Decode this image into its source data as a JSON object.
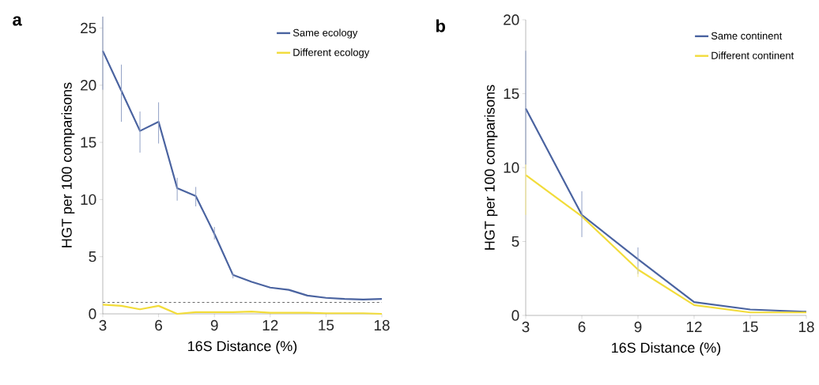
{
  "chart_data": [
    {
      "type": "line",
      "title": "a",
      "xlabel": "16S Distance (%)",
      "ylabel": "HGT per 100 comparisons",
      "x": [
        3,
        4,
        5,
        6,
        7,
        8,
        9,
        10,
        11,
        12,
        13,
        14,
        15,
        16,
        17,
        18
      ],
      "xlim": [
        3,
        18
      ],
      "ylim": [
        0,
        26
      ],
      "xticks": [
        3,
        6,
        9,
        12,
        15,
        18
      ],
      "yticks": [
        0,
        5,
        10,
        15,
        20,
        25
      ],
      "legend": "top right",
      "series": [
        {
          "name": "Same ecology",
          "color": "#4a63a0",
          "values": [
            23,
            19.5,
            16,
            16.8,
            11,
            10.3,
            7,
            3.4,
            2.8,
            2.3,
            2.1,
            1.6,
            1.4,
            1.3,
            1.25,
            1.3
          ],
          "errors": [
            [
              19.6,
              26
            ],
            [
              16.8,
              21.8
            ],
            [
              14.1,
              17.7
            ],
            [
              14.9,
              18.5
            ],
            [
              9.9,
              11.9
            ],
            [
              9.4,
              11.1
            ],
            [
              6.5,
              7.6
            ],
            [
              3.1,
              3.6
            ],
            null,
            null,
            null,
            null,
            null,
            null,
            null,
            null
          ]
        },
        {
          "name": "Different ecology",
          "color": "#f2dc3a",
          "values": [
            0.8,
            0.7,
            0.4,
            0.7,
            0,
            0.15,
            0.15,
            0.15,
            0.2,
            0.1,
            0.1,
            0.1,
            0.05,
            0.05,
            0.05,
            0
          ]
        }
      ],
      "ref_lines": [
        {
          "axis": "y",
          "value": 1,
          "color": "#666666",
          "line_style": "dashed"
        }
      ]
    },
    {
      "type": "line",
      "title": "b",
      "xlabel": "16S Distance (%)",
      "ylabel": "HGT per 100 comparisons",
      "x": [
        3,
        6,
        9,
        12,
        15,
        18
      ],
      "xlim": [
        3,
        18
      ],
      "ylim": [
        0,
        20
      ],
      "xticks": [
        3,
        6,
        9,
        12,
        15,
        18
      ],
      "yticks": [
        0,
        5,
        10,
        15,
        20
      ],
      "legend": "top right",
      "series": [
        {
          "name": "Same continent",
          "color": "#4a63a0",
          "values": [
            14,
            6.8,
            3.8,
            0.9,
            0.4,
            0.25
          ],
          "errors": [
            [
              10.2,
              17.9
            ],
            [
              5.3,
              8.4
            ],
            [
              2.8,
              4.6
            ],
            null,
            null,
            null
          ]
        },
        {
          "name": "Different continent",
          "color": "#f2dc3a",
          "values": [
            9.5,
            6.7,
            3.1,
            0.7,
            0.2,
            0.2
          ],
          "errors": [
            [
              6.8,
              10.2
            ],
            null,
            [
              2.6,
              3.3
            ],
            null,
            null,
            null
          ]
        }
      ]
    }
  ]
}
